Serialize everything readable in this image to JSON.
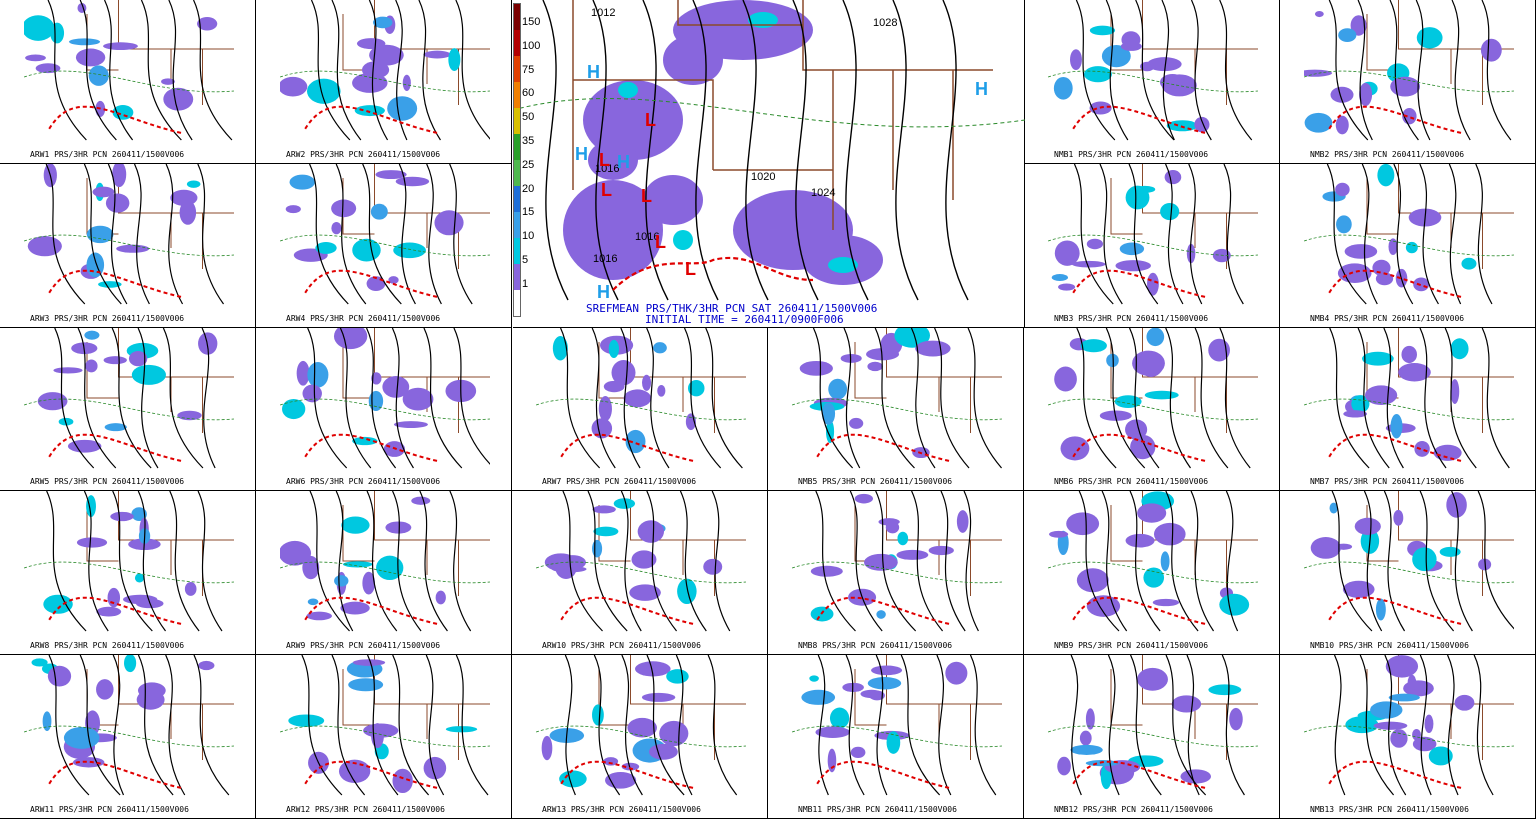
{
  "central": {
    "title": "SREFMEAN PRS/THK/3HR PCN SAT 260411/1500V006",
    "initial_time": "INITIAL TIME = 260411/0900F006",
    "colorbar": {
      "labels": [
        "150",
        "100",
        "75",
        "60",
        "50",
        "35",
        "25",
        "20",
        "15",
        "10",
        "5",
        "1"
      ],
      "colors": [
        "#7a0000",
        "#b30000",
        "#e04000",
        "#f07f00",
        "#d8c000",
        "#2aa02a",
        "#4fb84f",
        "#1e6fd8",
        "#3aa0e8",
        "#00c8e0",
        "#8866dd",
        "#ffffff"
      ]
    },
    "isobars": [
      "1012",
      "1028",
      "1020",
      "1024",
      "1016",
      "1016",
      "1016"
    ],
    "pressure_centers": [
      "H",
      "L",
      "L",
      "H",
      "L",
      "L",
      "H",
      "L",
      "H",
      "L",
      "H"
    ]
  },
  "panels": [
    {
      "caption": "ARW1 PRS/3HR PCN 260411/1500V006"
    },
    {
      "caption": "ARW2 PRS/3HR PCN 260411/1500V006"
    },
    {
      "caption": "NMB1 PRS/3HR PCN 260411/1500V006"
    },
    {
      "caption": "NMB2 PRS/3HR PCN 260411/1500V006"
    },
    {
      "caption": "ARW3 PRS/3HR PCN 260411/1500V006"
    },
    {
      "caption": "ARW4 PRS/3HR PCN 260411/1500V006"
    },
    {
      "caption": "NMB3 PRS/3HR PCN 260411/1500V006"
    },
    {
      "caption": "NMB4 PRS/3HR PCN 260411/1500V006"
    },
    {
      "caption": "ARW5 PRS/3HR PCN 260411/1500V006"
    },
    {
      "caption": "ARW6 PRS/3HR PCN 260411/1500V006"
    },
    {
      "caption": "ARW7 PRS/3HR PCN 260411/1500V006"
    },
    {
      "caption": "NMB5 PRS/3HR PCN 260411/1500V006"
    },
    {
      "caption": "NMB6 PRS/3HR PCN 260411/1500V006"
    },
    {
      "caption": "NMB7 PRS/3HR PCN 260411/1500V006"
    },
    {
      "caption": "ARW8 PRS/3HR PCN 260411/1500V006"
    },
    {
      "caption": "ARW9 PRS/3HR PCN 260411/1500V006"
    },
    {
      "caption": "ARW10 PRS/3HR PCN 260411/1500V006"
    },
    {
      "caption": "NMB8 PRS/3HR PCN 260411/1500V006"
    },
    {
      "caption": "NMB9 PRS/3HR PCN 260411/1500V006"
    },
    {
      "caption": "NMB10 PRS/3HR PCN 260411/1500V006"
    },
    {
      "caption": "ARW11 PRS/3HR PCN 260411/1500V006"
    },
    {
      "caption": "ARW12 PRS/3HR PCN 260411/1500V006"
    },
    {
      "caption": "ARW13 PRS/3HR PCN 260411/1500V006"
    },
    {
      "caption": "NMB11 PRS/3HR PCN 260411/1500V006"
    },
    {
      "caption": "NMB12 PRS/3HR PCN 260411/1500V006"
    },
    {
      "caption": "NMB13 PRS/3HR PCN 260411/1500V006"
    }
  ]
}
